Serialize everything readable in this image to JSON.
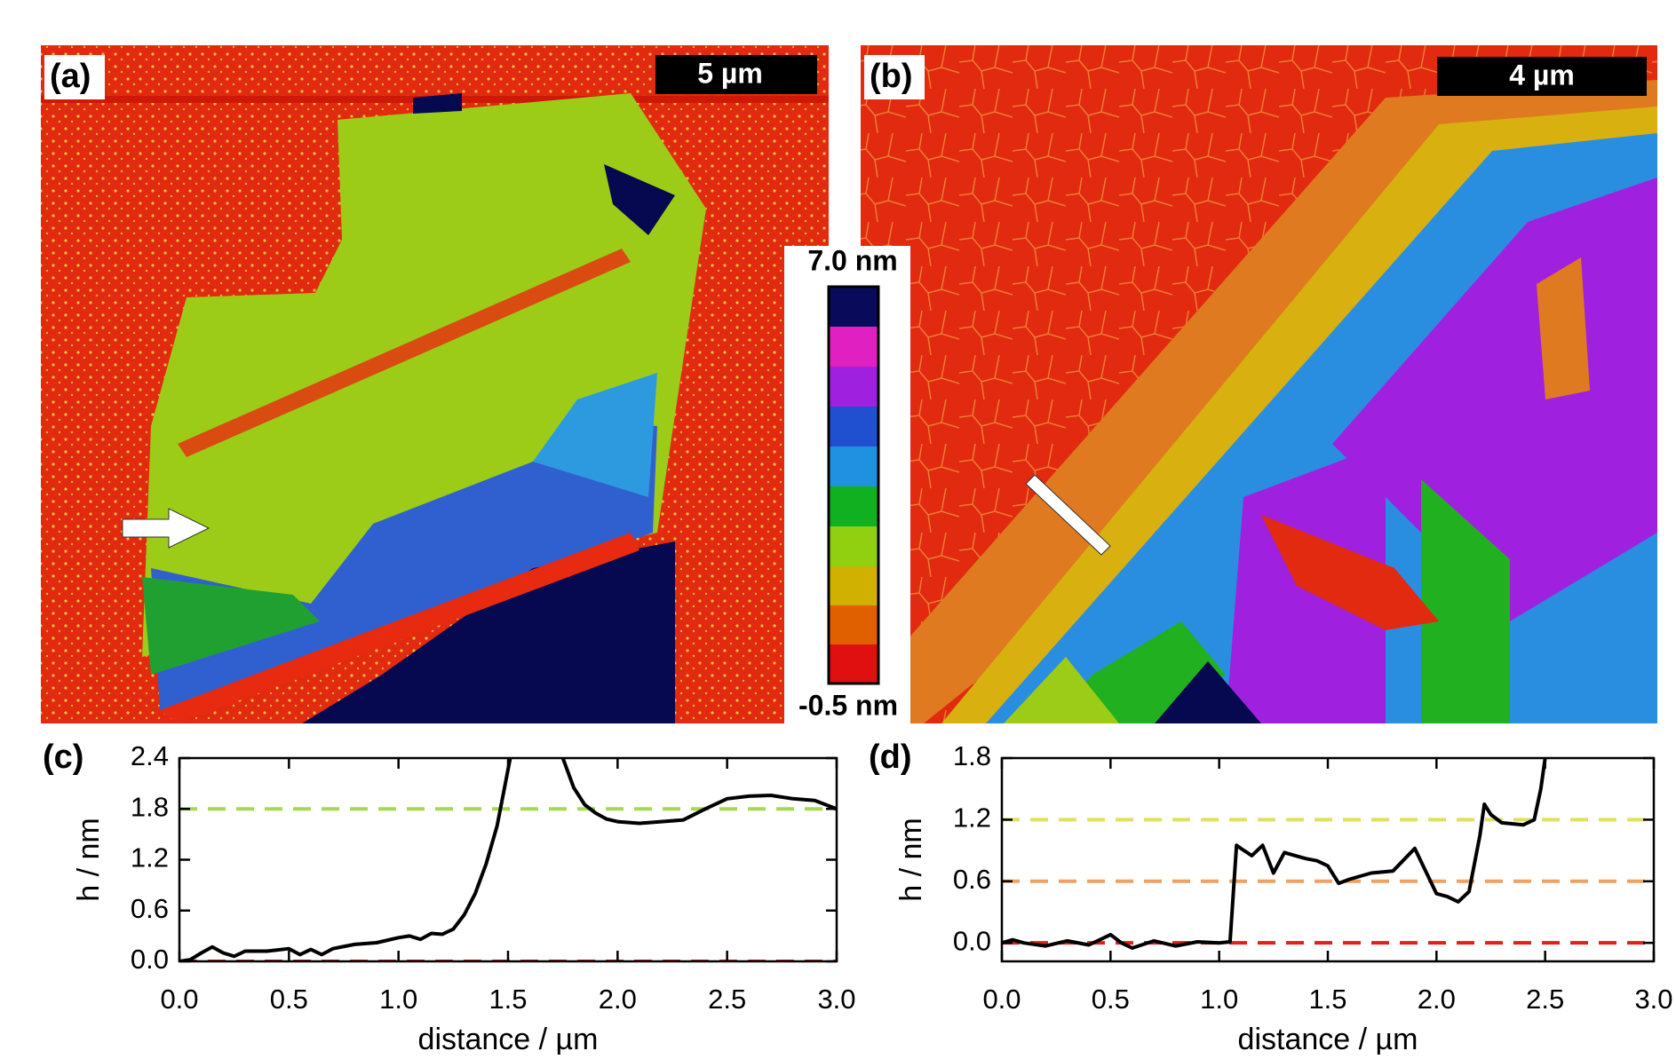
{
  "panels": {
    "a": {
      "label": "(a)",
      "scale_bar": "5 µm"
    },
    "b": {
      "label": "(b)",
      "scale_bar": "4 µm"
    }
  },
  "colorbar": {
    "top": "7.0 nm",
    "bottom": "-0.5 nm"
  },
  "chart_data": [
    {
      "type": "line",
      "panel": "(c)",
      "x_label": "distance / µm",
      "y_label": "h / nm",
      "color": "#000000",
      "xlim": [
        0,
        3
      ],
      "ylim": [
        0,
        2.4
      ],
      "xticks": [
        {
          "value": 0,
          "label": "0.0"
        },
        0.5,
        {
          "value": 1,
          "label": "1.0"
        },
        1.5,
        {
          "value": 2,
          "label": "2.0"
        },
        2.5,
        {
          "value": 3,
          "label": "3.0"
        }
      ],
      "yticks": [
        {
          "value": 0,
          "label": "0.0"
        },
        0.6,
        1.2,
        1.8,
        2.4
      ],
      "reference_lines": [
        {
          "value": 0,
          "color": "#e02020"
        },
        {
          "value": 1.8,
          "color": "#a8d850"
        }
      ],
      "x": [
        0,
        0.05,
        0.1,
        0.15,
        0.2,
        0.25,
        0.3,
        0.4,
        0.5,
        0.55,
        0.6,
        0.65,
        0.7,
        0.8,
        0.9,
        1.0,
        1.05,
        1.1,
        1.15,
        1.2,
        1.25,
        1.3,
        1.35,
        1.4,
        1.45,
        1.48,
        1.51,
        1.6,
        1.75,
        1.8,
        1.85,
        1.9,
        1.95,
        2.0,
        2.1,
        2.2,
        2.3,
        2.4,
        2.5,
        2.6,
        2.7,
        2.8,
        2.9,
        3.0
      ],
      "values": [
        0,
        0.02,
        0.1,
        0.17,
        0.1,
        0.06,
        0.12,
        0.12,
        0.15,
        0.08,
        0.14,
        0.08,
        0.15,
        0.2,
        0.22,
        0.28,
        0.3,
        0.26,
        0.33,
        0.32,
        0.38,
        0.55,
        0.8,
        1.15,
        1.6,
        2.0,
        2.4,
        null,
        2.4,
        2.05,
        1.85,
        1.75,
        1.68,
        1.65,
        1.63,
        1.65,
        1.67,
        1.8,
        1.92,
        1.95,
        1.96,
        1.92,
        1.9,
        1.8
      ]
    },
    {
      "type": "line",
      "panel": "(d)",
      "x_label": "distance / µm",
      "y_label": "h / nm",
      "color": "#000000",
      "xlim": [
        0,
        3
      ],
      "ylim": [
        -0.18,
        1.8
      ],
      "xticks": [
        {
          "value": 0,
          "label": "0.0"
        },
        0.5,
        {
          "value": 1,
          "label": "1.0"
        },
        1.5,
        {
          "value": 2,
          "label": "2.0"
        },
        2.5,
        {
          "value": 3,
          "label": "3.0"
        }
      ],
      "yticks": [
        {
          "value": 0,
          "label": "0.0"
        },
        0.6,
        1.2,
        1.8
      ],
      "reference_lines": [
        {
          "value": 0,
          "color": "#e02020"
        },
        {
          "value": 0.6,
          "color": "#f0a060"
        },
        {
          "value": 1.2,
          "color": "#e0e060"
        }
      ],
      "x": [
        0,
        0.05,
        0.1,
        0.2,
        0.3,
        0.4,
        0.5,
        0.55,
        0.6,
        0.7,
        0.8,
        0.9,
        1.0,
        1.05,
        1.08,
        1.1,
        1.15,
        1.2,
        1.25,
        1.3,
        1.35,
        1.4,
        1.45,
        1.5,
        1.55,
        1.6,
        1.65,
        1.7,
        1.8,
        1.9,
        1.95,
        2.0,
        2.05,
        2.1,
        2.15,
        2.2,
        2.22,
        2.25,
        2.3,
        2.4,
        2.45,
        2.48,
        2.5
      ],
      "values": [
        0,
        0.03,
        0,
        -0.03,
        0.02,
        -0.02,
        0.08,
        0,
        -0.05,
        0.02,
        -0.03,
        0.01,
        0,
        0.01,
        0.95,
        0.92,
        0.85,
        0.95,
        0.68,
        0.88,
        0.85,
        0.82,
        0.8,
        0.75,
        0.58,
        0.62,
        0.65,
        0.68,
        0.7,
        0.92,
        0.7,
        0.48,
        0.45,
        0.4,
        0.5,
        1.05,
        1.35,
        1.25,
        1.17,
        1.15,
        1.2,
        1.5,
        1.8
      ]
    }
  ]
}
